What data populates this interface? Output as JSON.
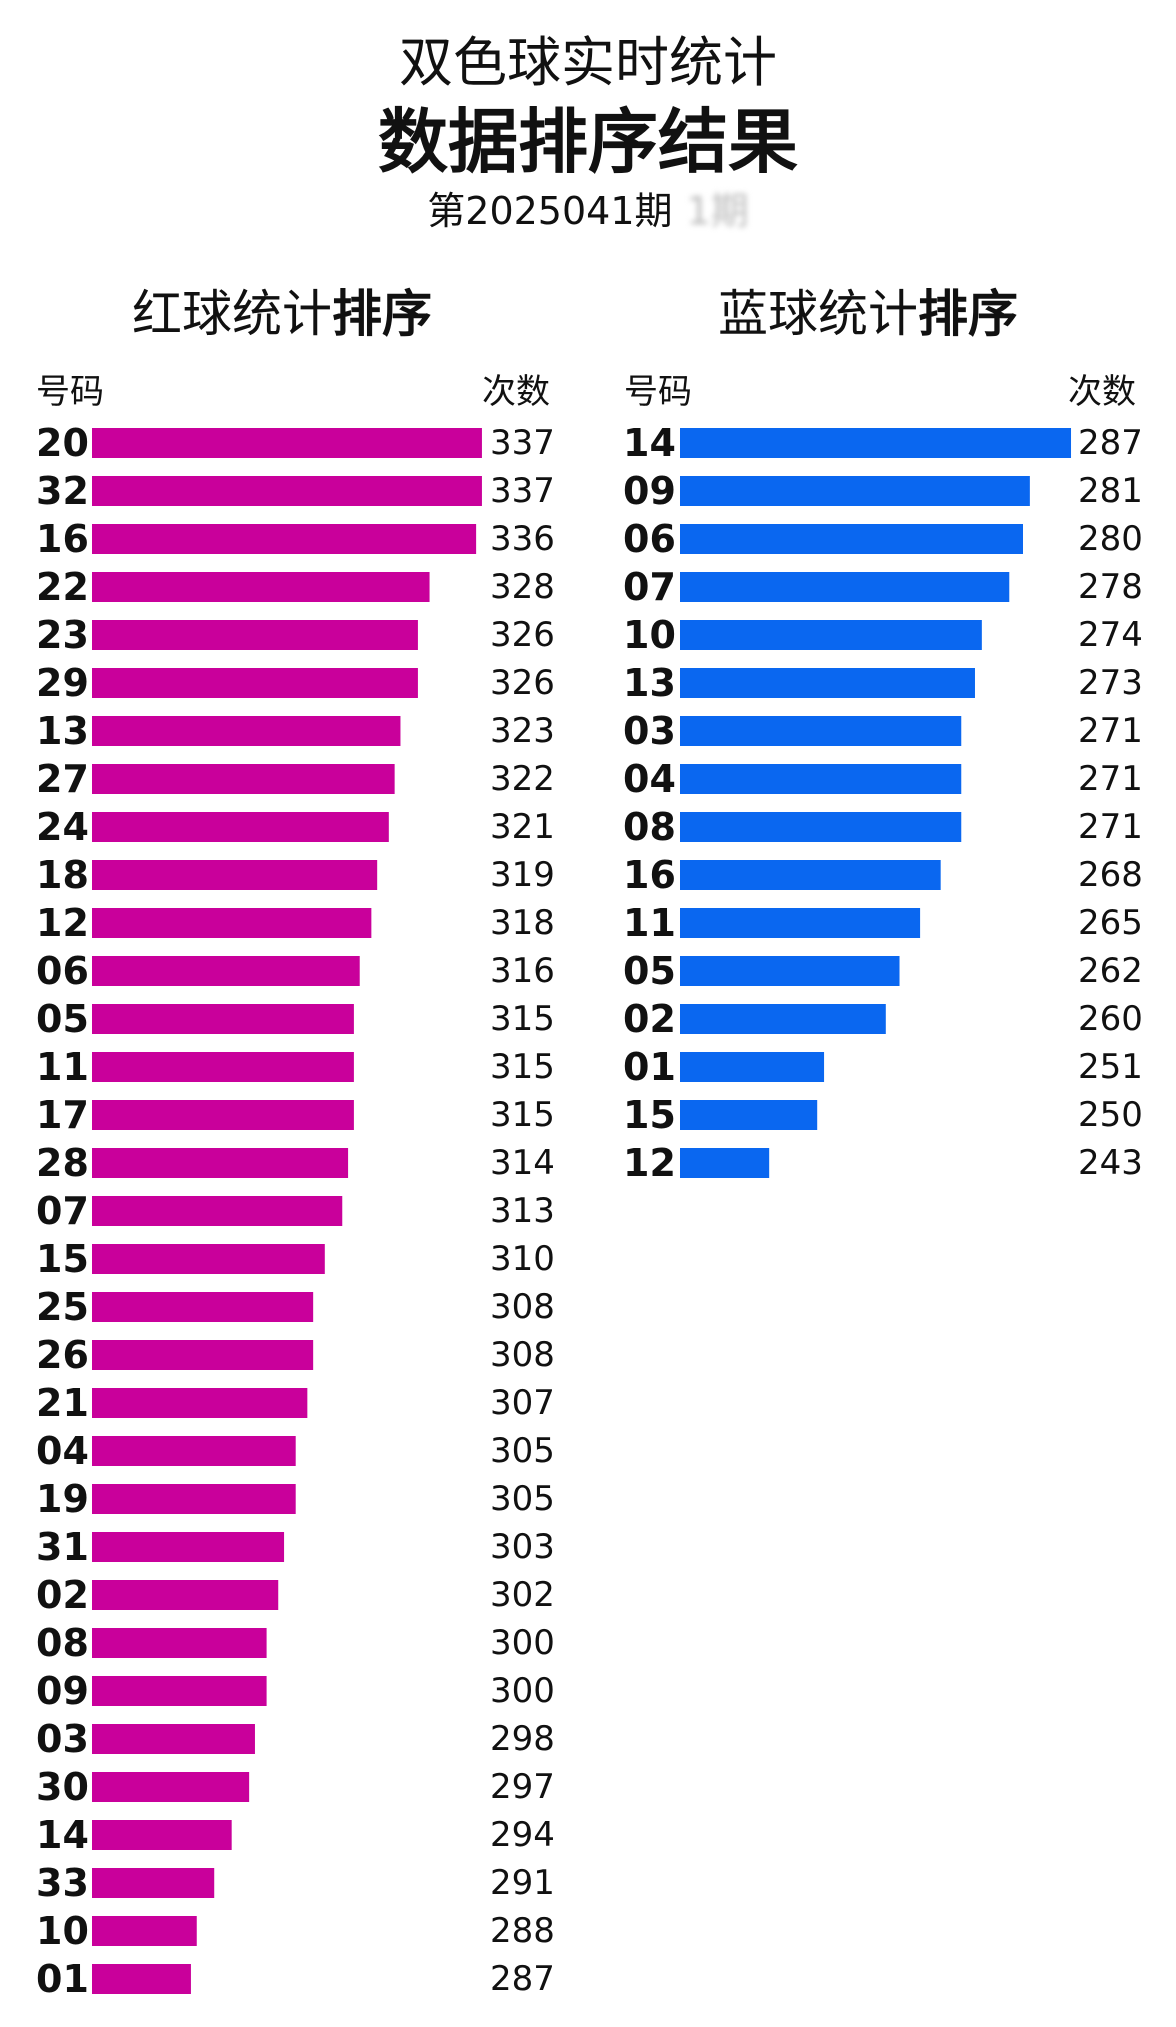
{
  "header": {
    "title": "双色球实时统计",
    "subtitle": "数据排序结果",
    "issue": "第2025041期",
    "issue_extra": "1期"
  },
  "red_panel": {
    "title_normal": "红球统计",
    "title_bold": "排序",
    "col_left": "号码",
    "col_right": "次数",
    "color": "#c9009b"
  },
  "blue_panel": {
    "title_normal": "蓝球统计",
    "title_bold": "排序",
    "col_left": "号码",
    "col_right": "次数",
    "color": "#0a67f0"
  },
  "chart_data": [
    {
      "type": "bar",
      "orientation": "horizontal",
      "categories": [
        "20",
        "32",
        "16",
        "22",
        "23",
        "29",
        "13",
        "27",
        "24",
        "18",
        "12",
        "06",
        "05",
        "11",
        "17",
        "28",
        "07",
        "15",
        "25",
        "26",
        "21",
        "04",
        "19",
        "31",
        "02",
        "08",
        "09",
        "03",
        "30",
        "14",
        "33",
        "10",
        "01"
      ],
      "values": [
        337,
        337,
        336,
        328,
        326,
        326,
        323,
        322,
        321,
        319,
        318,
        316,
        315,
        315,
        315,
        314,
        313,
        310,
        308,
        308,
        307,
        305,
        305,
        303,
        302,
        300,
        300,
        298,
        297,
        294,
        291,
        288,
        287
      ],
      "title": "红球统计排序",
      "xlabel": "次数",
      "ylabel": "号码",
      "color": "#c9009b",
      "grid": false
    },
    {
      "type": "bar",
      "orientation": "horizontal",
      "categories": [
        "14",
        "09",
        "06",
        "07",
        "10",
        "13",
        "03",
        "04",
        "08",
        "16",
        "11",
        "05",
        "02",
        "01",
        "15",
        "12"
      ],
      "values": [
        287,
        281,
        280,
        278,
        274,
        273,
        271,
        271,
        271,
        268,
        265,
        262,
        260,
        251,
        250,
        243
      ],
      "title": "蓝球统计排序",
      "xlabel": "次数",
      "ylabel": "号码",
      "color": "#0a67f0",
      "grid": false
    }
  ]
}
